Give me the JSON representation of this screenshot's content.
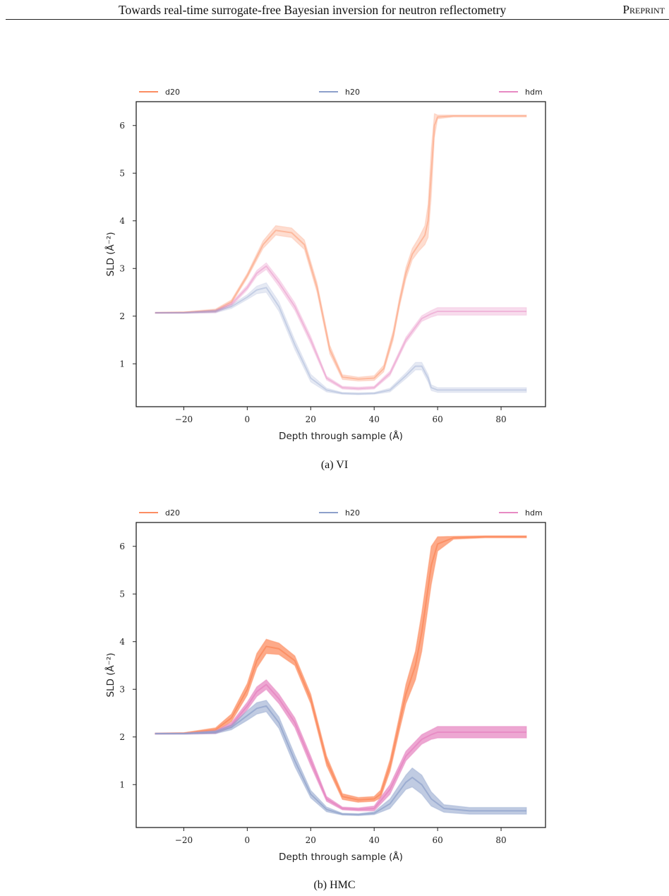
{
  "header": {
    "title": "Towards real-time surrogate-free Bayesian inversion for neutron reflectometry",
    "tag": "Preprint"
  },
  "colors": {
    "d20": "#fc8d62",
    "h20": "#8da0cb",
    "hdm": "#e78ac3",
    "axis": "#222222"
  },
  "chart_data": [
    {
      "type": "line",
      "caption": "(a) VI",
      "xlabel": "Depth through sample (Å)",
      "ylabel": "SLD (Å⁻²)",
      "xlim": [
        -35,
        94
      ],
      "ylim": [
        0.1,
        6.5
      ],
      "xticks": [
        -20,
        0,
        20,
        40,
        60,
        80
      ],
      "yticks": [
        1,
        2,
        3,
        4,
        5,
        6
      ],
      "grid": false,
      "legend_position": "top",
      "series": [
        {
          "name": "d20",
          "x": [
            -29,
            -20,
            -10,
            -5,
            0,
            5,
            9,
            14,
            18,
            22,
            26,
            30,
            35,
            40,
            43,
            46,
            48,
            50,
            52,
            54,
            56,
            57,
            58,
            59,
            60,
            65,
            75,
            88
          ],
          "y": [
            2.07,
            2.08,
            2.12,
            2.3,
            2.85,
            3.5,
            3.8,
            3.75,
            3.5,
            2.6,
            1.3,
            0.72,
            0.68,
            0.7,
            0.9,
            1.6,
            2.3,
            2.9,
            3.3,
            3.5,
            3.7,
            4.0,
            5.0,
            6.0,
            6.18,
            6.2,
            6.2,
            6.2
          ],
          "spread": [
            0.01,
            0.01,
            0.03,
            0.04,
            0.05,
            0.08,
            0.1,
            0.1,
            0.1,
            0.1,
            0.09,
            0.05,
            0.04,
            0.05,
            0.07,
            0.1,
            0.1,
            0.12,
            0.12,
            0.14,
            0.2,
            0.35,
            0.5,
            0.25,
            0.04,
            0.02,
            0.02,
            0.02
          ]
        },
        {
          "name": "h20",
          "x": [
            -29,
            -20,
            -10,
            -5,
            0,
            3,
            6,
            10,
            15,
            20,
            25,
            30,
            35,
            40,
            45,
            50,
            53,
            55,
            57,
            58,
            60,
            70,
            88
          ],
          "y": [
            2.07,
            2.07,
            2.1,
            2.2,
            2.4,
            2.55,
            2.6,
            2.2,
            1.4,
            0.7,
            0.45,
            0.38,
            0.37,
            0.38,
            0.45,
            0.75,
            0.95,
            0.95,
            0.7,
            0.5,
            0.45,
            0.45,
            0.45
          ],
          "spread": [
            0.01,
            0.01,
            0.03,
            0.04,
            0.05,
            0.08,
            0.1,
            0.1,
            0.1,
            0.08,
            0.04,
            0.02,
            0.02,
            0.02,
            0.04,
            0.06,
            0.08,
            0.08,
            0.08,
            0.06,
            0.05,
            0.05,
            0.05
          ]
        },
        {
          "name": "hdm",
          "x": [
            -29,
            -20,
            -10,
            -5,
            0,
            3,
            6,
            10,
            15,
            20,
            25,
            30,
            35,
            40,
            45,
            50,
            55,
            58,
            60,
            70,
            88
          ],
          "y": [
            2.07,
            2.07,
            2.1,
            2.25,
            2.6,
            2.9,
            3.05,
            2.7,
            2.2,
            1.5,
            0.7,
            0.5,
            0.48,
            0.5,
            0.8,
            1.5,
            1.95,
            2.05,
            2.1,
            2.1,
            2.1
          ],
          "spread": [
            0.01,
            0.01,
            0.03,
            0.04,
            0.05,
            0.06,
            0.07,
            0.08,
            0.08,
            0.08,
            0.04,
            0.03,
            0.03,
            0.03,
            0.05,
            0.06,
            0.06,
            0.07,
            0.08,
            0.08,
            0.08
          ]
        }
      ]
    },
    {
      "type": "line",
      "caption": "(b) HMC",
      "xlabel": "Depth through sample (Å)",
      "ylabel": "SLD (Å⁻²)",
      "xlim": [
        -35,
        94
      ],
      "ylim": [
        0.1,
        6.5
      ],
      "xticks": [
        -20,
        0,
        20,
        40,
        60,
        80
      ],
      "yticks": [
        1,
        2,
        3,
        4,
        5,
        6
      ],
      "grid": false,
      "legend_position": "top",
      "series": [
        {
          "name": "d20",
          "x": [
            -29,
            -20,
            -10,
            -5,
            0,
            3,
            6,
            10,
            15,
            20,
            25,
            30,
            35,
            40,
            42,
            45,
            48,
            50,
            53,
            55,
            58,
            60,
            65,
            75,
            88
          ],
          "y": [
            2.07,
            2.08,
            2.15,
            2.4,
            3.0,
            3.6,
            3.9,
            3.85,
            3.6,
            2.8,
            1.5,
            0.75,
            0.68,
            0.7,
            0.8,
            1.4,
            2.3,
            2.9,
            3.5,
            4.2,
            5.6,
            6.05,
            6.18,
            6.2,
            6.2
          ],
          "spread": [
            0.01,
            0.01,
            0.04,
            0.08,
            0.12,
            0.15,
            0.15,
            0.12,
            0.1,
            0.1,
            0.1,
            0.06,
            0.05,
            0.05,
            0.08,
            0.12,
            0.15,
            0.2,
            0.3,
            0.4,
            0.4,
            0.15,
            0.03,
            0.02,
            0.02
          ]
        },
        {
          "name": "h20",
          "x": [
            -29,
            -20,
            -10,
            -5,
            0,
            3,
            6,
            10,
            15,
            20,
            25,
            30,
            35,
            40,
            45,
            50,
            52,
            55,
            58,
            62,
            70,
            88
          ],
          "y": [
            2.07,
            2.07,
            2.1,
            2.2,
            2.45,
            2.6,
            2.65,
            2.3,
            1.5,
            0.8,
            0.48,
            0.38,
            0.37,
            0.4,
            0.6,
            1.05,
            1.15,
            1.0,
            0.7,
            0.5,
            0.45,
            0.45
          ],
          "spread": [
            0.01,
            0.01,
            0.03,
            0.05,
            0.1,
            0.12,
            0.12,
            0.12,
            0.12,
            0.08,
            0.05,
            0.02,
            0.02,
            0.03,
            0.1,
            0.15,
            0.2,
            0.2,
            0.15,
            0.08,
            0.07,
            0.07
          ]
        },
        {
          "name": "hdm",
          "x": [
            -29,
            -20,
            -10,
            -5,
            0,
            3,
            6,
            10,
            15,
            20,
            25,
            30,
            35,
            40,
            45,
            50,
            55,
            58,
            60,
            70,
            88
          ],
          "y": [
            2.07,
            2.07,
            2.1,
            2.25,
            2.65,
            2.95,
            3.1,
            2.8,
            2.3,
            1.5,
            0.7,
            0.5,
            0.48,
            0.5,
            0.9,
            1.6,
            1.95,
            2.05,
            2.1,
            2.1,
            2.1
          ],
          "spread": [
            0.01,
            0.01,
            0.03,
            0.05,
            0.08,
            0.1,
            0.1,
            0.1,
            0.1,
            0.1,
            0.05,
            0.03,
            0.03,
            0.05,
            0.1,
            0.1,
            0.1,
            0.1,
            0.12,
            0.12,
            0.12
          ]
        }
      ]
    }
  ]
}
